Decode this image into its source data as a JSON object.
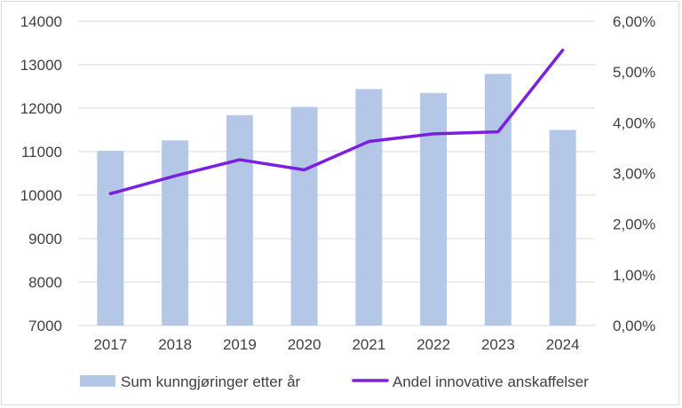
{
  "chart_data": {
    "type": "bar",
    "categories": [
      "2017",
      "2018",
      "2019",
      "2020",
      "2021",
      "2022",
      "2023",
      "2024"
    ],
    "series": [
      {
        "name": "Sum kunngjøringer etter år",
        "kind": "bar",
        "axis": "left",
        "color": "#b4c7e7",
        "values": [
          11020,
          11260,
          11840,
          12030,
          12440,
          12350,
          12790,
          11500
        ]
      },
      {
        "name": "Andel innovative anskaffelser",
        "kind": "line",
        "axis": "right",
        "color": "#7b1fe0",
        "values": [
          2.6,
          2.95,
          3.27,
          3.07,
          3.63,
          3.78,
          3.82,
          5.43
        ]
      }
    ],
    "left_axis": {
      "ylim": [
        7000,
        14000
      ],
      "ticks": [
        "7000",
        "8000",
        "9000",
        "10000",
        "11000",
        "12000",
        "13000",
        "14000"
      ]
    },
    "right_axis": {
      "ylim": [
        0,
        6
      ],
      "ticks": [
        "0,00%",
        "1,00%",
        "2,00%",
        "3,00%",
        "4,00%",
        "5,00%",
        "6,00%"
      ]
    },
    "grid": true,
    "legend_position": "bottom"
  }
}
